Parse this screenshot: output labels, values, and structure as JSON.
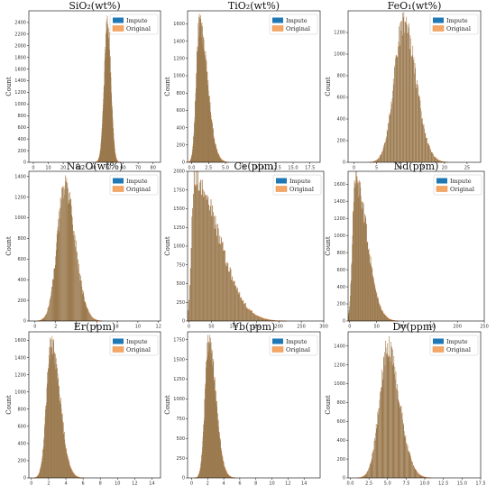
{
  "colors": {
    "impute": "#1f77b4",
    "original": "#f5a866",
    "original_edge": "#e6782a",
    "mix": "#9b7a4f"
  },
  "legend": {
    "impute": "Impute",
    "original": "Original"
  },
  "chart_data": [
    {
      "type": "bar",
      "title": "SiO₂(wt%)",
      "ylabel": "Count",
      "xlim": [
        -3,
        85
      ],
      "ylim": [
        0,
        2600
      ],
      "xticks": [
        "0",
        "10",
        "20",
        "30",
        "40",
        "50",
        "60",
        "70",
        "80"
      ],
      "yticks": [
        "0",
        "200",
        "400",
        "600",
        "800",
        "1000",
        "1200",
        "1400",
        "1600",
        "1800",
        "2000",
        "2200",
        "2400"
      ],
      "mu": 49.5,
      "sigmaL": 2.2,
      "sigmaR": 2.2,
      "peak": 2350,
      "bins": 200
    },
    {
      "type": "bar",
      "title": "TiO₂(wt%)",
      "ylabel": "Count",
      "xlim": [
        -0.6,
        19
      ],
      "ylim": [
        0,
        1750
      ],
      "xticks": [
        "0.0",
        "2.5",
        "5.0",
        "7.5",
        "10.0",
        "12.5",
        "15.0",
        "17.5"
      ],
      "yticks": [
        "0",
        "200",
        "400",
        "600",
        "800",
        "1000",
        "1200",
        "1400",
        "1600"
      ],
      "mu": 1.1,
      "sigmaL": 0.45,
      "sigmaR": 1.2,
      "peak": 1600,
      "bins": 200
    },
    {
      "type": "bar",
      "title": "FeO₁(wt%)",
      "ylabel": "Count",
      "xlim": [
        -1.3,
        28
      ],
      "ylim": [
        0,
        1400
      ],
      "xticks": [
        "0",
        "5",
        "10",
        "15",
        "20",
        "25"
      ],
      "yticks": [
        "0",
        "200",
        "400",
        "600",
        "800",
        "1000",
        "1200"
      ],
      "mu": 11.0,
      "sigmaL": 2.1,
      "sigmaR": 2.7,
      "peak": 1300,
      "bins": 200
    },
    {
      "type": "bar",
      "title": "Na₂O(wt%)",
      "ylabel": "Count",
      "xlim": [
        -0.6,
        12.2
      ],
      "ylim": [
        0,
        1450
      ],
      "xticks": [
        "0",
        "2",
        "4",
        "6",
        "8",
        "10",
        "12"
      ],
      "yticks": [
        "0",
        "200",
        "400",
        "600",
        "800",
        "1000",
        "1200",
        "1400"
      ],
      "mu": 2.9,
      "sigmaL": 0.75,
      "sigmaR": 1.0,
      "peak": 1300,
      "bins": 200
    },
    {
      "type": "bar",
      "title": "Ce(ppm)",
      "ylabel": "Count",
      "xlim": [
        -3,
        300
      ],
      "ylim": [
        0,
        2000
      ],
      "xticks": [
        "0",
        "50",
        "100",
        "150",
        "200",
        "250",
        "300"
      ],
      "yticks": [
        "0",
        "250",
        "500",
        "750",
        "1000",
        "1250",
        "1500",
        "1750",
        "2000"
      ],
      "mu": 12,
      "sigmaL": 6,
      "sigmaR": 55,
      "peak": 1880,
      "bins": 200
    },
    {
      "type": "bar",
      "title": "Nd(ppm)",
      "ylabel": "Count",
      "xlim": [
        -3,
        250
      ],
      "ylim": [
        0,
        1750
      ],
      "xticks": [
        "0",
        "50",
        "100",
        "150",
        "200",
        "250"
      ],
      "yticks": [
        "0",
        "200",
        "400",
        "600",
        "800",
        "1000",
        "1200",
        "1400",
        "1600"
      ],
      "mu": 10,
      "sigmaL": 5,
      "sigmaR": 22,
      "peak": 1650,
      "bins": 200
    },
    {
      "type": "bar",
      "title": "Er(ppm)",
      "ylabel": "Count",
      "xlim": [
        -0.3,
        15
      ],
      "ylim": [
        0,
        1700
      ],
      "xticks": [
        "0",
        "2",
        "4",
        "6",
        "8",
        "10",
        "12",
        "14"
      ],
      "yticks": [
        "0",
        "200",
        "400",
        "600",
        "800",
        "1000",
        "1200",
        "1400",
        "1600"
      ],
      "mu": 2.3,
      "sigmaL": 0.55,
      "sigmaR": 1.0,
      "peak": 1560,
      "bins": 200
    },
    {
      "type": "bar",
      "title": "Yb(ppm)",
      "ylabel": "Count",
      "xlim": [
        -0.5,
        16
      ],
      "ylim": [
        0,
        1850
      ],
      "xticks": [
        "0",
        "2",
        "4",
        "6",
        "8",
        "10",
        "12",
        "14"
      ],
      "yticks": [
        "0",
        "250",
        "500",
        "750",
        "1000",
        "1250",
        "1500",
        "1750"
      ],
      "mu": 2.1,
      "sigmaL": 0.45,
      "sigmaR": 0.9,
      "peak": 1700,
      "bins": 200
    },
    {
      "type": "bar",
      "title": "Dy(ppm)",
      "ylabel": "Count",
      "xlim": [
        -0.3,
        17.5
      ],
      "ylim": [
        0,
        1550
      ],
      "xticks": [
        "0.0",
        "2.5",
        "5.0",
        "7.5",
        "10.0",
        "12.5",
        "15.0",
        "17.5"
      ],
      "yticks": [
        "0",
        "200",
        "400",
        "600",
        "800",
        "1000",
        "1200",
        "1400"
      ],
      "mu": 5.0,
      "sigmaL": 1.1,
      "sigmaR": 1.6,
      "peak": 1380,
      "bins": 200
    }
  ]
}
